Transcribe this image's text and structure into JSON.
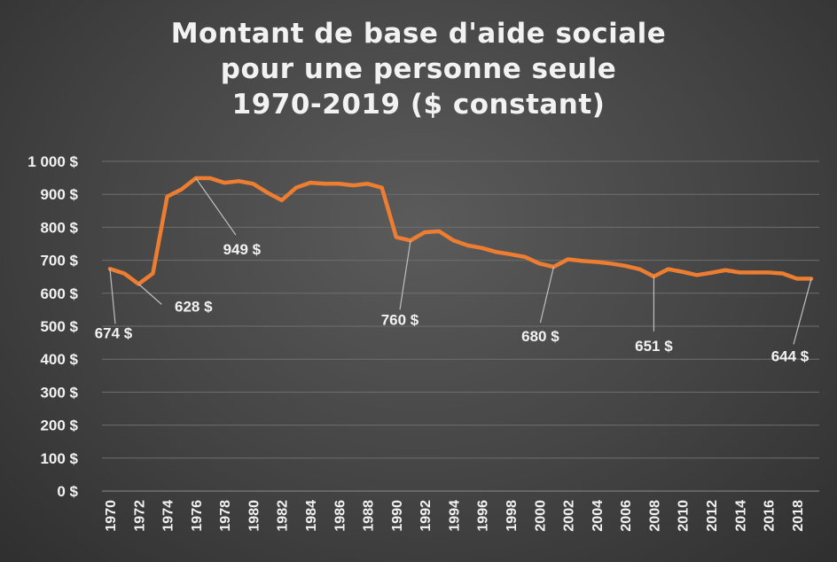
{
  "chart_data": {
    "type": "line",
    "title_lines": [
      "Montant de base d'aide sociale",
      "pour une personne seule",
      "1970-2019 ($ constant)"
    ],
    "x": [
      1970,
      1971,
      1972,
      1973,
      1974,
      1975,
      1976,
      1977,
      1978,
      1979,
      1980,
      1981,
      1982,
      1983,
      1984,
      1985,
      1986,
      1987,
      1988,
      1989,
      1990,
      1991,
      1992,
      1993,
      1994,
      1995,
      1996,
      1997,
      1998,
      1999,
      2000,
      2001,
      2002,
      2003,
      2004,
      2005,
      2006,
      2007,
      2008,
      2009,
      2010,
      2011,
      2012,
      2013,
      2014,
      2015,
      2016,
      2017,
      2018,
      2019
    ],
    "series": [
      {
        "color": "#ed7d31",
        "values": [
          674,
          660,
          628,
          660,
          893,
          915,
          949,
          949,
          935,
          940,
          932,
          905,
          882,
          920,
          935,
          932,
          932,
          927,
          932,
          920,
          770,
          760,
          785,
          788,
          760,
          745,
          737,
          725,
          718,
          710,
          690,
          680,
          703,
          698,
          695,
          690,
          683,
          673,
          651,
          673,
          665,
          655,
          662,
          670,
          663,
          663,
          663,
          660,
          644,
          644
        ]
      }
    ],
    "y_ticks": [
      "0 $",
      "100 $",
      "200 $",
      "300 $",
      "400 $",
      "500 $",
      "600 $",
      "700 $",
      "800 $",
      "900 $",
      "1 000 $"
    ],
    "ylim": [
      0,
      1000
    ],
    "x_ticks": [
      "1970",
      "1972",
      "1974",
      "1976",
      "1978",
      "1980",
      "1982",
      "1984",
      "1986",
      "1988",
      "1990",
      "1992",
      "1994",
      "1996",
      "1998",
      "2000",
      "2002",
      "2004",
      "2006",
      "2008",
      "2010",
      "2012",
      "2014",
      "2016",
      "2018"
    ],
    "grid": true,
    "annotations": [
      {
        "year": 1970,
        "text": "674 $"
      },
      {
        "year": 1972,
        "text": "628 $"
      },
      {
        "year": 1976,
        "text": "949 $"
      },
      {
        "year": 1991,
        "text": "760 $"
      },
      {
        "year": 2001,
        "text": "680 $"
      },
      {
        "year": 2008,
        "text": "651 $"
      },
      {
        "year": 2019,
        "text": "644 $"
      }
    ]
  }
}
